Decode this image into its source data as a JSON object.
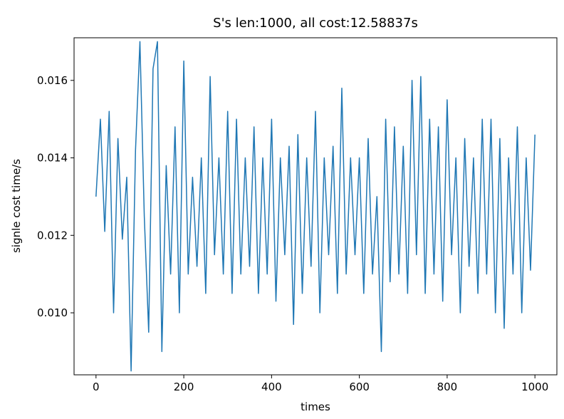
{
  "chart_data": {
    "type": "line",
    "title": "S's len:1000, all cost:12.58837s",
    "xlabel": "times",
    "ylabel": "signle cost time/s",
    "xlim": [
      -50,
      1050
    ],
    "ylim": [
      0.0084,
      0.0171
    ],
    "xticks": [
      0,
      200,
      400,
      600,
      800,
      1000
    ],
    "yticks": [
      0.01,
      0.012,
      0.014,
      0.016
    ],
    "xtick_labels": [
      "0",
      "200",
      "400",
      "600",
      "800",
      "1000"
    ],
    "ytick_labels": [
      "0.010",
      "0.012",
      "0.014",
      "0.016"
    ],
    "grid": false,
    "series": [
      {
        "color": "#1f77b4",
        "x": [
          0,
          10,
          20,
          30,
          40,
          50,
          60,
          70,
          80,
          90,
          100,
          110,
          120,
          130,
          140,
          150,
          160,
          170,
          180,
          190,
          200,
          210,
          220,
          230,
          240,
          250,
          260,
          270,
          280,
          290,
          300,
          310,
          320,
          330,
          340,
          350,
          360,
          370,
          380,
          390,
          400,
          410,
          420,
          430,
          440,
          450,
          460,
          470,
          480,
          490,
          500,
          510,
          520,
          530,
          540,
          550,
          560,
          570,
          580,
          590,
          600,
          610,
          620,
          630,
          640,
          650,
          660,
          670,
          680,
          690,
          700,
          710,
          720,
          730,
          740,
          750,
          760,
          770,
          780,
          790,
          800,
          810,
          820,
          830,
          840,
          850,
          860,
          870,
          880,
          890,
          900,
          910,
          920,
          930,
          940,
          950,
          960,
          970,
          980,
          990,
          1000
        ],
        "values": [
          0.013,
          0.015,
          0.0121,
          0.0152,
          0.01,
          0.0145,
          0.0119,
          0.0135,
          0.0085,
          0.0142,
          0.017,
          0.0125,
          0.0095,
          0.0163,
          0.017,
          0.009,
          0.0138,
          0.011,
          0.0148,
          0.01,
          0.0165,
          0.011,
          0.0135,
          0.0112,
          0.014,
          0.0105,
          0.0161,
          0.0115,
          0.014,
          0.011,
          0.0152,
          0.0105,
          0.015,
          0.011,
          0.014,
          0.0112,
          0.0148,
          0.0105,
          0.014,
          0.011,
          0.015,
          0.0103,
          0.014,
          0.0115,
          0.0143,
          0.0097,
          0.0146,
          0.0105,
          0.014,
          0.0112,
          0.0152,
          0.01,
          0.014,
          0.0115,
          0.0143,
          0.0105,
          0.0158,
          0.011,
          0.014,
          0.0115,
          0.014,
          0.0105,
          0.0145,
          0.011,
          0.013,
          0.009,
          0.015,
          0.0108,
          0.0148,
          0.011,
          0.0143,
          0.0105,
          0.016,
          0.0115,
          0.0161,
          0.0105,
          0.015,
          0.011,
          0.0148,
          0.0103,
          0.0155,
          0.0115,
          0.014,
          0.01,
          0.0145,
          0.0112,
          0.014,
          0.0105,
          0.015,
          0.011,
          0.015,
          0.01,
          0.0145,
          0.0096,
          0.014,
          0.011,
          0.0148,
          0.01,
          0.014,
          0.0111,
          0.0146
        ]
      }
    ]
  }
}
